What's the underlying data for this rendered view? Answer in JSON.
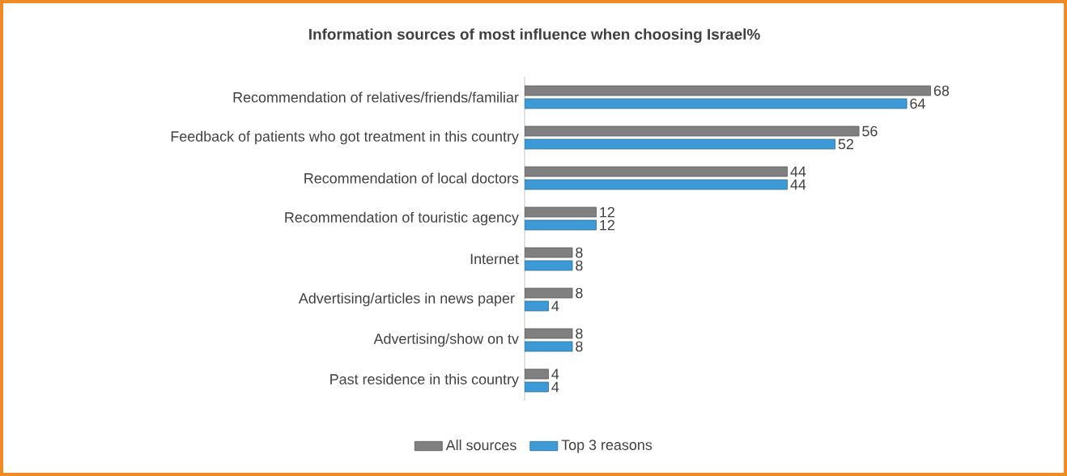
{
  "chart_data": {
    "type": "bar",
    "orientation": "horizontal",
    "title": "Information sources  of most  influence when choosing  Israel%",
    "categories": [
      "Recommendation of relatives/friends/familiar",
      "Feedback of patients who got treatment in this country",
      "Recommendation of local doctors",
      "Recommendation of touristic agency",
      "Internet",
      "Advertising/articles in news paper ",
      "Advertising/show on tv",
      "Past residence in this country"
    ],
    "series": [
      {
        "name": "All sources",
        "color": "#808080",
        "values": [
          68,
          56,
          44,
          12,
          8,
          8,
          8,
          4
        ]
      },
      {
        "name": "Top 3 reasons",
        "color": "#3d9ad6",
        "values": [
          64,
          52,
          44,
          12,
          8,
          4,
          8,
          4
        ]
      }
    ],
    "data_labels": true,
    "legend": "bottom"
  }
}
